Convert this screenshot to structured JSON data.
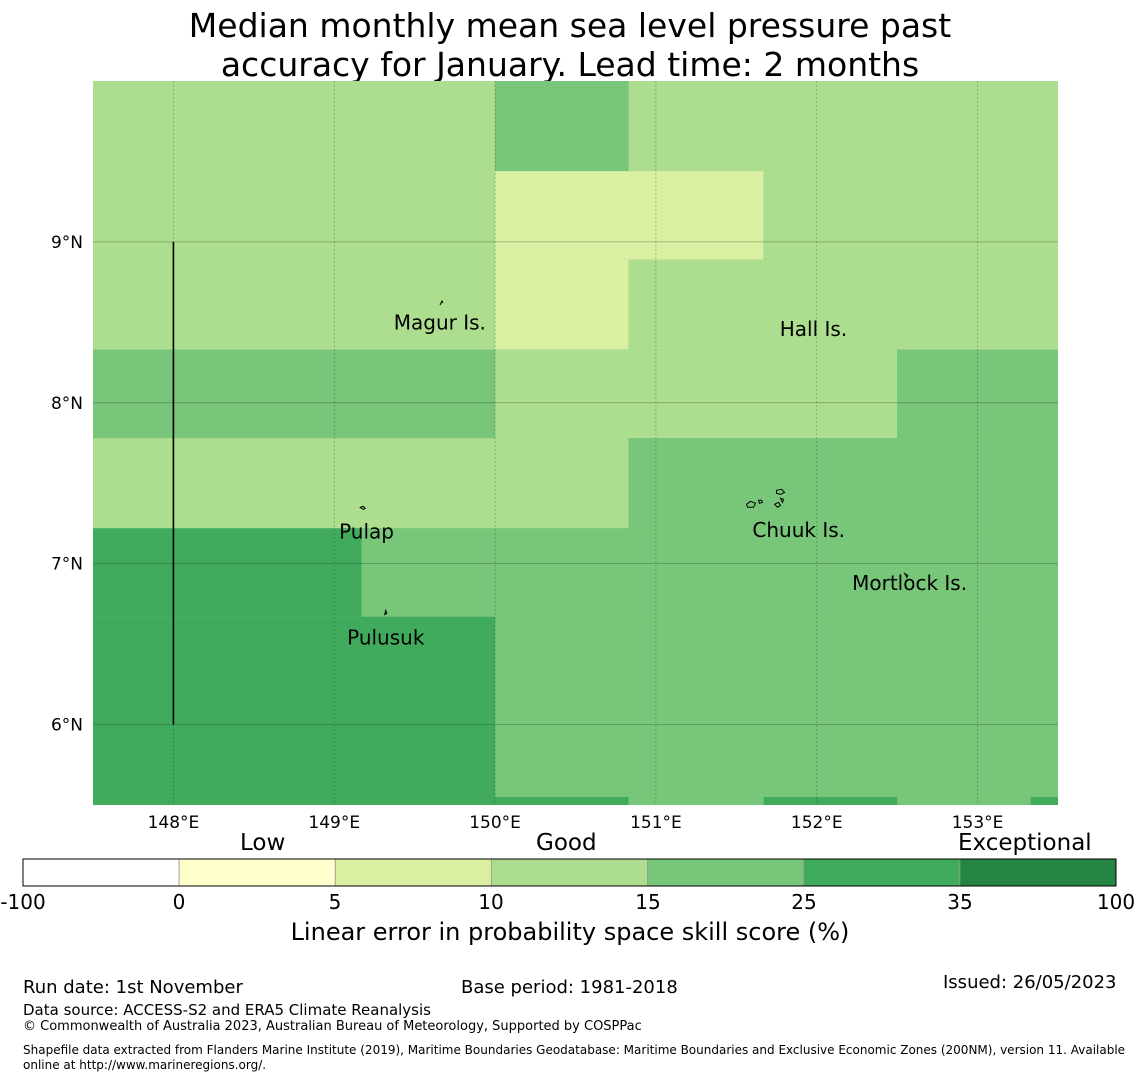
{
  "title_line1": "Median monthly mean sea level pressure past",
  "title_line2": "accuracy for January. Lead time: 2 months",
  "map": {
    "lon_range": [
      147.5,
      153.5
    ],
    "lat_range": [
      5.5,
      10.0
    ],
    "lon_ticks": [
      {
        "value": 148,
        "label": "148°E"
      },
      {
        "value": 149,
        "label": "149°E"
      },
      {
        "value": 150,
        "label": "150°E"
      },
      {
        "value": 151,
        "label": "151°E"
      },
      {
        "value": 152,
        "label": "152°E"
      },
      {
        "value": 153,
        "label": "153°E"
      }
    ],
    "lat_ticks": [
      {
        "value": 6,
        "label": "6°N"
      },
      {
        "value": 7,
        "label": "7°N"
      },
      {
        "value": 8,
        "label": "8°N"
      },
      {
        "value": 9,
        "label": "9°N"
      }
    ],
    "cells": [
      {
        "lon0": 147.5,
        "lon1": 150.0,
        "lat0": 8.33,
        "lat1": 10.0,
        "bin": 3
      },
      {
        "lon0": 150.0,
        "lon1": 150.83,
        "lat0": 9.44,
        "lat1": 10.0,
        "bin": 4
      },
      {
        "lon0": 150.83,
        "lon1": 153.5,
        "lat0": 9.44,
        "lat1": 10.0,
        "bin": 3
      },
      {
        "lon0": 150.0,
        "lon1": 151.67,
        "lat0": 8.89,
        "lat1": 9.44,
        "bin": 2
      },
      {
        "lon0": 151.67,
        "lon1": 153.5,
        "lat0": 8.89,
        "lat1": 9.44,
        "bin": 3
      },
      {
        "lon0": 150.0,
        "lon1": 150.83,
        "lat0": 8.33,
        "lat1": 8.89,
        "bin": 2
      },
      {
        "lon0": 150.83,
        "lon1": 153.5,
        "lat0": 8.33,
        "lat1": 8.89,
        "bin": 3
      },
      {
        "lon0": 147.5,
        "lon1": 150.0,
        "lat0": 7.78,
        "lat1": 8.33,
        "bin": 4
      },
      {
        "lon0": 150.0,
        "lon1": 152.5,
        "lat0": 7.78,
        "lat1": 8.33,
        "bin": 3
      },
      {
        "lon0": 152.5,
        "lon1": 153.5,
        "lat0": 7.78,
        "lat1": 8.33,
        "bin": 4
      },
      {
        "lon0": 147.5,
        "lon1": 150.83,
        "lat0": 7.22,
        "lat1": 7.78,
        "bin": 3
      },
      {
        "lon0": 150.83,
        "lon1": 153.5,
        "lat0": 7.22,
        "lat1": 7.78,
        "bin": 4
      },
      {
        "lon0": 147.5,
        "lon1": 149.17,
        "lat0": 6.67,
        "lat1": 7.22,
        "bin": 5
      },
      {
        "lon0": 149.17,
        "lon1": 153.5,
        "lat0": 6.67,
        "lat1": 7.22,
        "bin": 4
      },
      {
        "lon0": 147.5,
        "lon1": 150.0,
        "lat0": 5.5,
        "lat1": 6.67,
        "bin": 5
      },
      {
        "lon0": 150.0,
        "lon1": 153.5,
        "lat0": 5.55,
        "lat1": 6.67,
        "bin": 4
      },
      {
        "lon0": 150.0,
        "lon1": 150.83,
        "lat0": 5.5,
        "lat1": 5.55,
        "bin": 5
      },
      {
        "lon0": 150.83,
        "lon1": 151.67,
        "lat0": 5.5,
        "lat1": 5.55,
        "bin": 4
      },
      {
        "lon0": 151.67,
        "lon1": 152.5,
        "lat0": 5.5,
        "lat1": 5.55,
        "bin": 5
      },
      {
        "lon0": 152.5,
        "lon1": 153.33,
        "lat0": 5.5,
        "lat1": 5.55,
        "bin": 4
      },
      {
        "lon0": 153.33,
        "lon1": 153.5,
        "lat0": 5.5,
        "lat1": 5.55,
        "bin": 5
      }
    ],
    "boundary_line": {
      "lon": 148.0,
      "lat_from": 6.0,
      "lat_to": 9.0
    },
    "places": [
      {
        "name": "Magur Is.",
        "lon": 149.37,
        "lat": 8.5
      },
      {
        "name": "Hall Is.",
        "lon": 151.77,
        "lat": 8.46
      },
      {
        "name": "Pulap",
        "lon": 149.03,
        "lat": 7.2
      },
      {
        "name": "Chuuk Is.",
        "lon": 151.6,
        "lat": 7.21
      },
      {
        "name": "Mortlock Is.",
        "lon": 152.22,
        "lat": 6.88
      },
      {
        "name": "Pulusuk",
        "lon": 149.08,
        "lat": 6.54
      }
    ]
  },
  "colorbar": {
    "category_labels": [
      "Low",
      "Good",
      "Exceptional"
    ],
    "tick_labels": [
      "-100",
      "0",
      "5",
      "10",
      "15",
      "25",
      "35",
      "100"
    ],
    "colors": [
      "#ffffff",
      "#ffffcc",
      "#d9f0a3",
      "#addd8e",
      "#78c679",
      "#41ab5d",
      "#238443"
    ],
    "title": "Linear error in probability space skill score (%)"
  },
  "footer": {
    "run_date": "Run date: 1st November",
    "base_period": "Base period: 1981-2018",
    "issued": "Issued: 26/05/2023",
    "data_source": "Data source: ACCESS-S2 and ERA5 Climate Reanalysis",
    "copyright": "© Commonwealth of Australia 2023, Australian Bureau of Meteorology, Supported by COSPPac",
    "shapefile_line1": "Shapefile data extracted from Flanders Marine Institute (2019), Maritime Boundaries Geodatabase: Maritime Boundaries and Exclusive Economic Zones (200NM), version 11. Available",
    "shapefile_line2": "online at http://www.marineregions.org/."
  }
}
